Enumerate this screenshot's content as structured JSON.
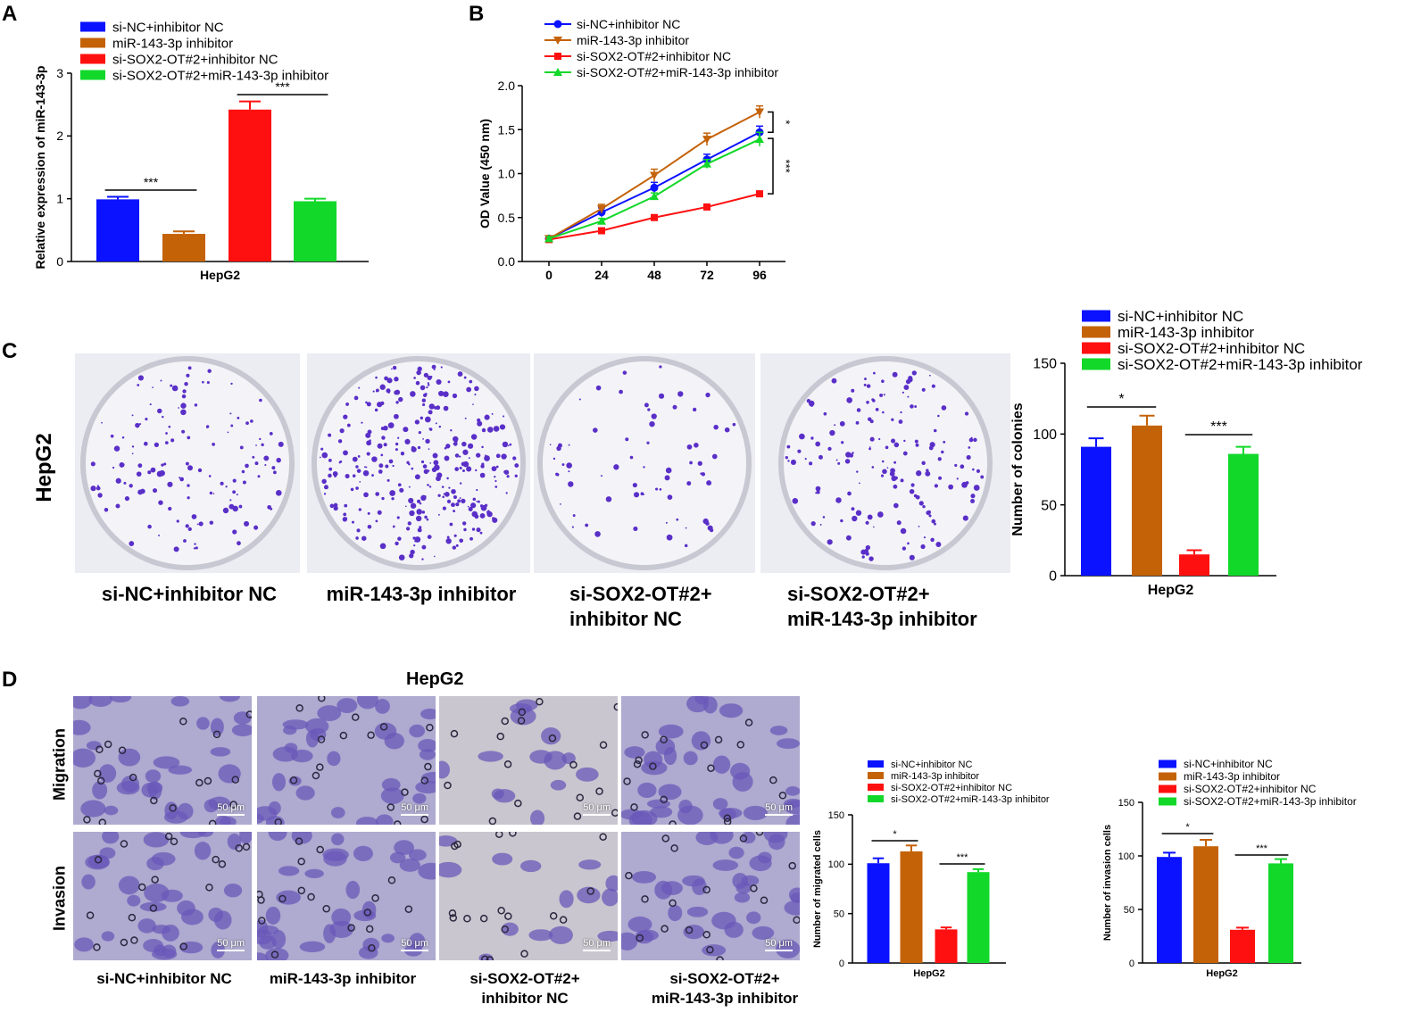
{
  "panels": {
    "a": "A",
    "b": "B",
    "c": "C",
    "d": "D"
  },
  "colors": {
    "blue": "#0a12ff",
    "orange": "#c46208",
    "red": "#ff1010",
    "green": "#12d82a"
  },
  "groups": [
    "si-NC+inhibitor NC",
    "miR-143-3p inhibitor",
    "si-SOX2-OT#2+inhibitor NC",
    "si-SOX2-OT#2+miR-143-3p inhibitor"
  ],
  "panel_c": {
    "row_label": "HepG2",
    "captions": [
      [
        "si-NC+inhibitor NC",
        ""
      ],
      [
        "miR-143-3p inhibitor",
        ""
      ],
      [
        "si-SOX2-OT#2+",
        "inhibitor NC"
      ],
      [
        "si-SOX2-OT#2+",
        "miR-143-3p inhibitor"
      ]
    ]
  },
  "panel_d": {
    "title": "HepG2",
    "row_labels": [
      "Migration",
      "Invasion"
    ],
    "scale_bar": "50 μm",
    "captions": [
      [
        "si-NC+inhibitor NC",
        ""
      ],
      [
        "miR-143-3p inhibitor",
        ""
      ],
      [
        "si-SOX2-OT#2+",
        "inhibitor NC"
      ],
      [
        "si-SOX2-OT#2+",
        "miR-143-3p inhibitor"
      ]
    ]
  },
  "chart_data": [
    {
      "id": "A",
      "type": "bar",
      "xlabel": "HepG2",
      "ylabel": "Relative expression of miR-143-3p",
      "ylim": [
        0,
        3
      ],
      "yticks": [
        "0",
        "1",
        "2",
        "3"
      ],
      "categories": [
        "si-NC+inhibitor NC",
        "miR-143-3p inhibitor",
        "si-SOX2-OT#2+inhibitor NC",
        "si-SOX2-OT#2+miR-143-3p inhibitor"
      ],
      "values": [
        0.99,
        0.44,
        2.42,
        0.96
      ],
      "errors": [
        0.04,
        0.04,
        0.13,
        0.04
      ],
      "significance": [
        {
          "pair": [
            0,
            1
          ],
          "label": "***"
        },
        {
          "pair": [
            2,
            3
          ],
          "label": "***"
        }
      ],
      "legend": "top-left"
    },
    {
      "id": "B",
      "type": "line",
      "xlabel": "",
      "ylabel": "OD Value (450 nm)",
      "x": [
        0,
        24,
        48,
        72,
        96
      ],
      "xticks": [
        "0",
        "24",
        "48",
        "72",
        "96"
      ],
      "ylim": [
        0,
        2.0
      ],
      "yticks": [
        "0.0",
        "0.5",
        "1.0",
        "1.5",
        "2.0"
      ],
      "series": [
        {
          "name": "si-NC+inhibitor NC",
          "values": [
            0.26,
            0.56,
            0.84,
            1.16,
            1.47
          ],
          "errors": [
            0.02,
            0.05,
            0.06,
            0.06,
            0.07
          ],
          "marker": "circle"
        },
        {
          "name": "miR-143-3p inhibitor",
          "values": [
            0.26,
            0.6,
            0.98,
            1.39,
            1.7
          ],
          "errors": [
            0.02,
            0.05,
            0.07,
            0.07,
            0.07
          ],
          "marker": "triangle-down"
        },
        {
          "name": "si-SOX2-OT#2+inhibitor NC",
          "values": [
            0.25,
            0.35,
            0.5,
            0.62,
            0.77
          ],
          "errors": [
            0.01,
            0.02,
            0.02,
            0.02,
            0.03
          ],
          "marker": "square"
        },
        {
          "name": "si-SOX2-OT#2+miR-143-3p inhibitor",
          "values": [
            0.26,
            0.46,
            0.74,
            1.11,
            1.39
          ],
          "errors": [
            0.02,
            0.03,
            0.04,
            0.05,
            0.08
          ],
          "marker": "triangle-up"
        }
      ],
      "significance": [
        {
          "label": "*"
        },
        {
          "label": "***"
        }
      ],
      "legend": "top-left"
    },
    {
      "id": "C",
      "type": "bar",
      "xlabel": "HepG2",
      "ylabel": "Number of colonies",
      "ylim": [
        0,
        150
      ],
      "yticks": [
        "0",
        "50",
        "100",
        "150"
      ],
      "categories": [
        "si-NC+inhibitor NC",
        "miR-143-3p inhibitor",
        "si-SOX2-OT#2+inhibitor NC",
        "si-SOX2-OT#2+miR-143-3p inhibitor"
      ],
      "values": [
        91,
        106,
        15,
        86
      ],
      "errors": [
        6,
        7,
        3,
        5
      ],
      "significance": [
        {
          "pair": [
            0,
            1
          ],
          "label": "*"
        },
        {
          "pair": [
            2,
            3
          ],
          "label": "***"
        }
      ],
      "legend": "top"
    },
    {
      "id": "D-migration",
      "type": "bar",
      "xlabel": "HepG2",
      "ylabel": "Number of migrated cells",
      "ylim": [
        0,
        150
      ],
      "yticks": [
        "0",
        "50",
        "100",
        "150"
      ],
      "categories": [
        "si-NC+inhibitor NC",
        "miR-143-3p inhibitor",
        "si-SOX2-OT#2+inhibitor NC",
        "si-SOX2-OT#2+miR-143-3p inhibitor"
      ],
      "values": [
        101,
        113,
        34,
        92
      ],
      "errors": [
        5,
        6,
        2,
        3
      ],
      "significance": [
        {
          "pair": [
            0,
            1
          ],
          "label": "*"
        },
        {
          "pair": [
            2,
            3
          ],
          "label": "***"
        }
      ],
      "legend": "top"
    },
    {
      "id": "D-invasion",
      "type": "bar",
      "xlabel": "HepG2",
      "ylabel": "Number of invasion cells",
      "ylim": [
        0,
        150
      ],
      "yticks": [
        "0",
        "50",
        "100",
        "150"
      ],
      "categories": [
        "si-NC+inhibitor NC",
        "miR-143-3p inhibitor",
        "si-SOX2-OT#2+inhibitor NC",
        "si-SOX2-OT#2+miR-143-3p inhibitor"
      ],
      "values": [
        99,
        109,
        31,
        93
      ],
      "errors": [
        4,
        6,
        2,
        4
      ],
      "significance": [
        {
          "pair": [
            0,
            1
          ],
          "label": "*"
        },
        {
          "pair": [
            2,
            3
          ],
          "label": "***"
        }
      ],
      "legend": "top"
    }
  ]
}
